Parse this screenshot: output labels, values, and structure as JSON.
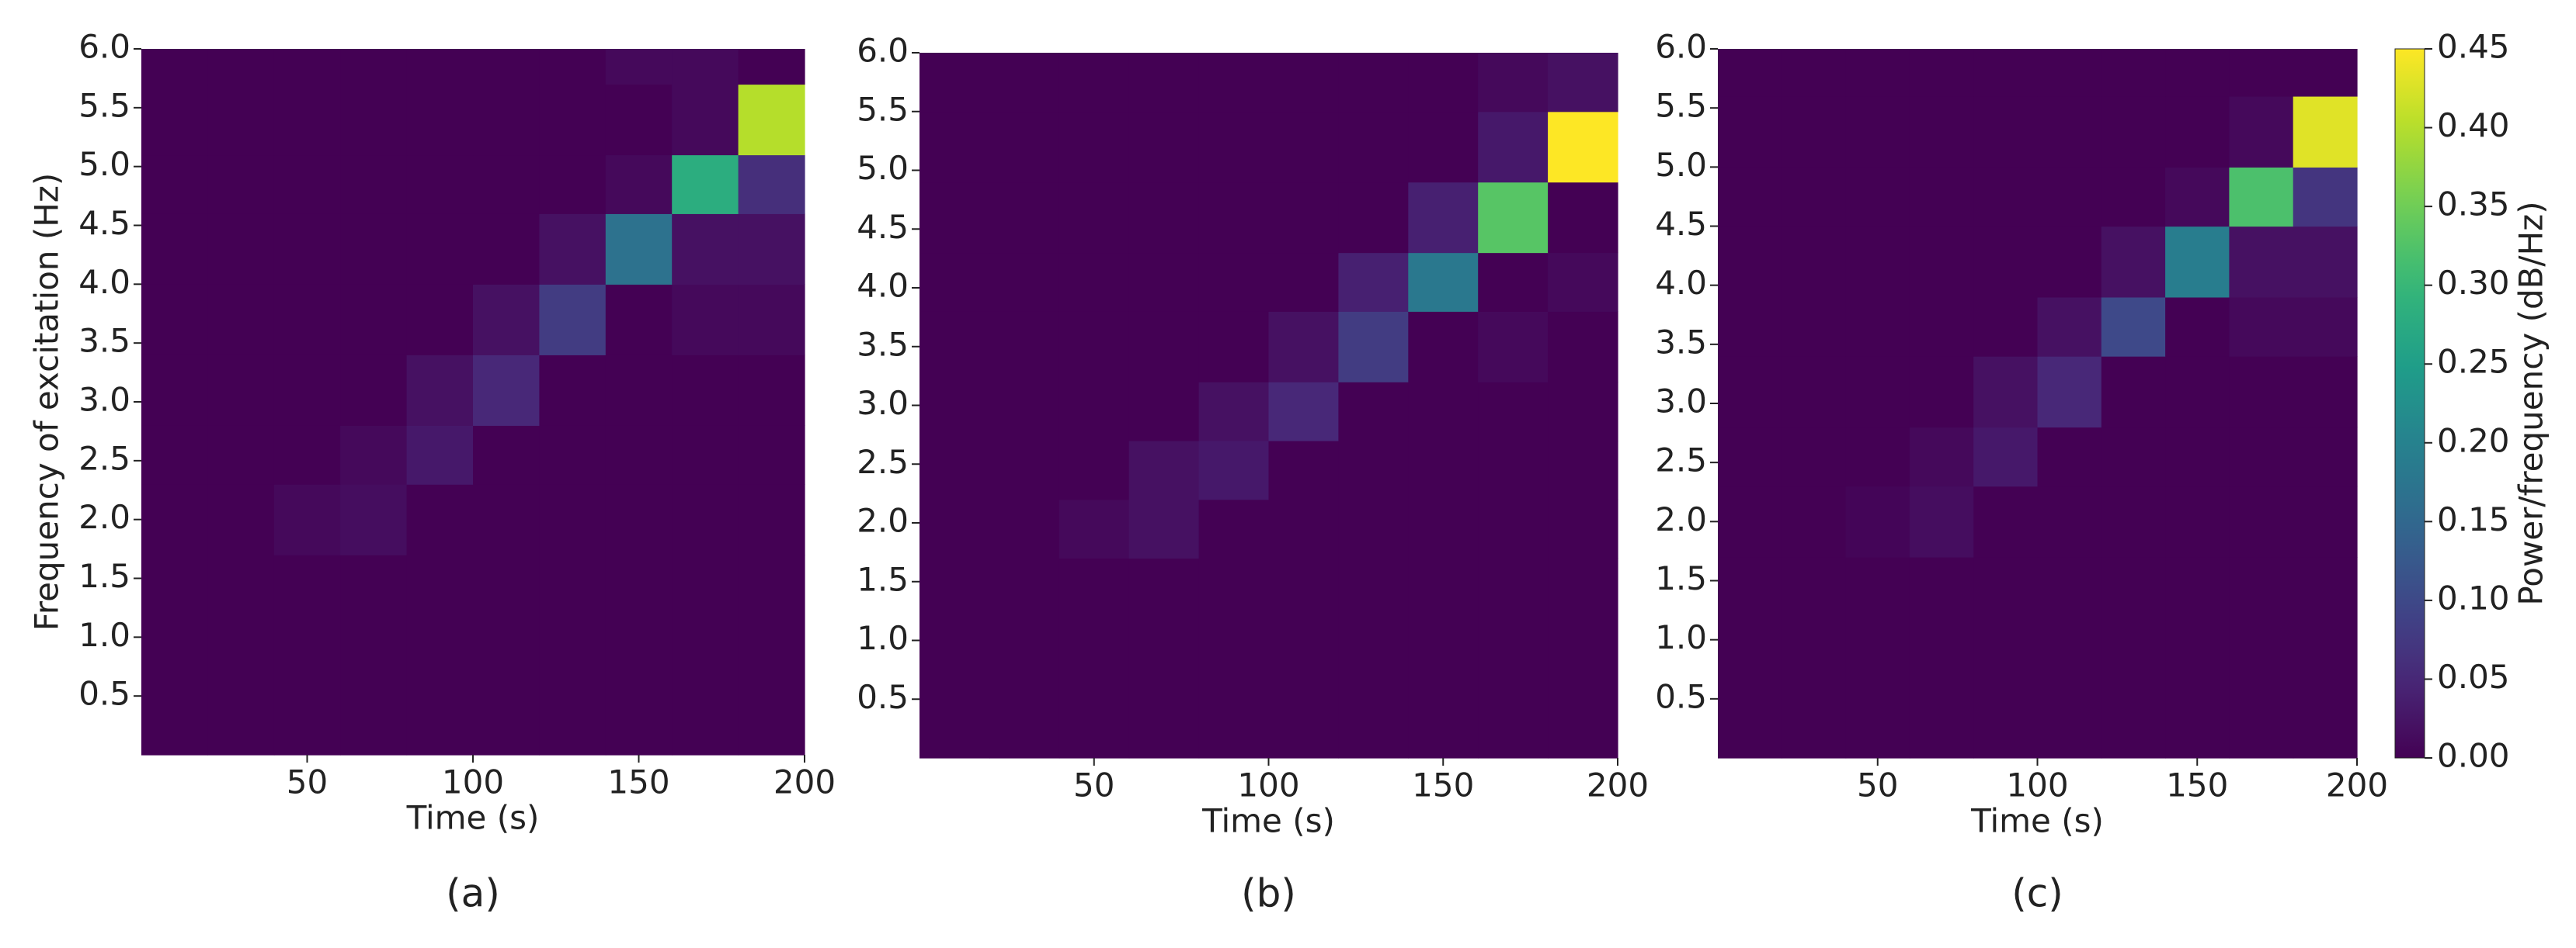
{
  "chart_data": [
    {
      "type": "heatmap",
      "caption": "(a)",
      "xlabel": "Time (s)",
      "ylabel": "Frequency of excitation (Hz)",
      "xlim": [
        0,
        200
      ],
      "ylim": [
        0,
        6
      ],
      "xticks": [
        50,
        100,
        150,
        200
      ],
      "yticks": [
        0.5,
        {
          "value": 1,
          "label": "1.0"
        },
        1.5,
        {
          "value": 2,
          "label": "2.0"
        },
        2.5,
        {
          "value": 3,
          "label": "3.0"
        },
        3.5,
        {
          "value": 4,
          "label": "4.0"
        },
        4.5,
        {
          "value": 5,
          "label": "5.0"
        },
        5.5,
        {
          "value": 6,
          "label": "6.0"
        }
      ],
      "x_edges": [
        0,
        20,
        40,
        60,
        80,
        100,
        120,
        140,
        160,
        180,
        200
      ],
      "y_edges": [
        0,
        1.7,
        2.3,
        2.8,
        3.4,
        4.0,
        4.6,
        5.1,
        5.7,
        6.0
      ],
      "z": [
        [
          0,
          0,
          0,
          0,
          0,
          0,
          0,
          0,
          0,
          0
        ],
        [
          0,
          0,
          0.01,
          0.015,
          0,
          0,
          0,
          0,
          0,
          0
        ],
        [
          0,
          0,
          0,
          0.01,
          0.03,
          0,
          0,
          0,
          0,
          0
        ],
        [
          0,
          0,
          0,
          0,
          0.02,
          0.05,
          0,
          0,
          0,
          0
        ],
        [
          0,
          0,
          0,
          0,
          0,
          0.02,
          0.08,
          0,
          0.01,
          0.01
        ],
        [
          0,
          0,
          0,
          0,
          0,
          0,
          0.02,
          0.17,
          0.02,
          0.02
        ],
        [
          0,
          0,
          0,
          0,
          0,
          0,
          0,
          0.01,
          0.28,
          0.06
        ],
        [
          0,
          0,
          0,
          0,
          0,
          0,
          0,
          0,
          0.01,
          0.4
        ],
        [
          0,
          0,
          0,
          0,
          0,
          0,
          0,
          0.01,
          0.01,
          0
        ]
      ]
    },
    {
      "type": "heatmap",
      "caption": "(b)",
      "xlabel": "Time (s)",
      "xlim": [
        0,
        200
      ],
      "ylim": [
        0,
        6
      ],
      "xticks": [
        50,
        100,
        150,
        200
      ],
      "yticks": [
        0.5,
        {
          "value": 1,
          "label": "1.0"
        },
        1.5,
        {
          "value": 2,
          "label": "2.0"
        },
        2.5,
        {
          "value": 3,
          "label": "3.0"
        },
        3.5,
        {
          "value": 4,
          "label": "4.0"
        },
        4.5,
        {
          "value": 5,
          "label": "5.0"
        },
        5.5,
        {
          "value": 6,
          "label": "6.0"
        }
      ],
      "x_edges": [
        0,
        20,
        40,
        60,
        80,
        100,
        120,
        140,
        160,
        180,
        200
      ],
      "y_edges": [
        0,
        1.7,
        2.2,
        2.7,
        3.2,
        3.8,
        4.3,
        4.9,
        5.5,
        6.0
      ],
      "z": [
        [
          0,
          0,
          0,
          0,
          0,
          0,
          0,
          0,
          0,
          0
        ],
        [
          0,
          0,
          0.01,
          0.02,
          0,
          0,
          0,
          0,
          0,
          0
        ],
        [
          0,
          0,
          0,
          0.02,
          0.03,
          0,
          0,
          0,
          0,
          0
        ],
        [
          0,
          0,
          0,
          0,
          0.02,
          0.05,
          0,
          0,
          0,
          0
        ],
        [
          0,
          0,
          0,
          0,
          0,
          0.02,
          0.08,
          0,
          0.01,
          0
        ],
        [
          0,
          0,
          0,
          0,
          0,
          0,
          0.04,
          0.18,
          0,
          0.01
        ],
        [
          0,
          0,
          0,
          0,
          0,
          0,
          0,
          0.04,
          0.33,
          0
        ],
        [
          0,
          0,
          0,
          0,
          0,
          0,
          0,
          0,
          0.03,
          0.45
        ],
        [
          0,
          0,
          0,
          0,
          0,
          0,
          0,
          0,
          0.01,
          0.02
        ]
      ]
    },
    {
      "type": "heatmap",
      "caption": "(c)",
      "xlabel": "Time (s)",
      "xlim": [
        0,
        200
      ],
      "ylim": [
        0,
        6
      ],
      "xticks": [
        50,
        100,
        150,
        200
      ],
      "yticks": [
        0.5,
        {
          "value": 1,
          "label": "1.0"
        },
        1.5,
        {
          "value": 2,
          "label": "2.0"
        },
        2.5,
        {
          "value": 3,
          "label": "3.0"
        },
        3.5,
        {
          "value": 4,
          "label": "4.0"
        },
        4.5,
        {
          "value": 5,
          "label": "5.0"
        },
        5.5,
        {
          "value": 6,
          "label": "6.0"
        }
      ],
      "x_edges": [
        0,
        20,
        40,
        60,
        80,
        100,
        120,
        140,
        160,
        180,
        200
      ],
      "y_edges": [
        0,
        1.7,
        2.3,
        2.8,
        3.4,
        3.9,
        4.5,
        5.0,
        5.6,
        6.0
      ],
      "z": [
        [
          0,
          0,
          0,
          0,
          0,
          0,
          0,
          0,
          0,
          0
        ],
        [
          0,
          0,
          0.005,
          0.015,
          0,
          0,
          0,
          0,
          0,
          0
        ],
        [
          0,
          0,
          0,
          0.01,
          0.03,
          0,
          0,
          0,
          0,
          0
        ],
        [
          0,
          0,
          0,
          0,
          0.02,
          0.05,
          0,
          0,
          0,
          0
        ],
        [
          0,
          0,
          0,
          0,
          0,
          0.02,
          0.1,
          0,
          0.01,
          0.01
        ],
        [
          0,
          0,
          0,
          0,
          0,
          0,
          0.02,
          0.19,
          0.02,
          0.02
        ],
        [
          0,
          0,
          0,
          0,
          0,
          0,
          0,
          0.01,
          0.32,
          0.07
        ],
        [
          0,
          0,
          0,
          0,
          0,
          0,
          0,
          0,
          0.01,
          0.43
        ],
        [
          0,
          0,
          0,
          0,
          0,
          0,
          0,
          0,
          0,
          0
        ]
      ]
    }
  ],
  "colorbar": {
    "label": "Power/frequency (dB/Hz)",
    "colormap": "viridis",
    "lim": [
      0,
      0.45
    ],
    "ticks": [
      {
        "value": 0,
        "label": "0.00"
      },
      0.05,
      {
        "value": 0.1,
        "label": "0.10"
      },
      0.15,
      {
        "value": 0.2,
        "label": "0.20"
      },
      0.25,
      {
        "value": 0.3,
        "label": "0.30"
      },
      0.35,
      {
        "value": 0.4,
        "label": "0.40"
      },
      0.45
    ]
  }
}
